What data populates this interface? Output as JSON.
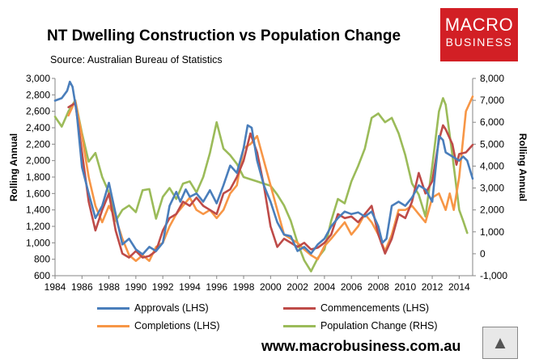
{
  "logo": {
    "line1": "MACRO",
    "line2": "BUSINESS"
  },
  "footer": {
    "url": "www.macrobusiness.com.au",
    "wolf_icon": "wolf-head-icon"
  },
  "colors": {
    "approvals": "#4a7ebb",
    "commencements": "#be4b48",
    "completions": "#f79646",
    "population": "#9bbb59"
  },
  "chart_data": {
    "type": "line",
    "title": "NT Dwelling Construction vs Population Change",
    "subtitle": "Source: Australian Bureau of Statistics",
    "xlabel": "",
    "ylabel_left": "Rolling Annual",
    "ylabel_right": "Rolling Annual",
    "xlim": [
      1984,
      2015
    ],
    "ylim_left": [
      600,
      3000
    ],
    "ylim_right": [
      -1000,
      8000
    ],
    "x_ticks": [
      "1984",
      "1986",
      "1988",
      "1990",
      "1992",
      "1994",
      "1996",
      "1998",
      "2000",
      "2002",
      "2004",
      "2006",
      "2008",
      "2010",
      "2012",
      "2014"
    ],
    "y_ticks_left": [
      "600",
      "800",
      "1,000",
      "1,200",
      "1,400",
      "1,600",
      "1,800",
      "2,000",
      "2,200",
      "2,400",
      "2,600",
      "2,800",
      "3,000"
    ],
    "y_ticks_right": [
      "-1,000",
      "0",
      "1,000",
      "2,000",
      "3,000",
      "4,000",
      "5,000",
      "6,000",
      "7,000",
      "8,000"
    ],
    "legend": [
      "Approvals (LHS)",
      "Commencements (LHS)",
      "Completions (LHS)",
      "Population Change (RHS)"
    ],
    "series": [
      {
        "name": "Approvals (LHS)",
        "axis": "left",
        "points": [
          [
            1984.0,
            2730
          ],
          [
            1984.5,
            2760
          ],
          [
            1984.9,
            2850
          ],
          [
            1985.1,
            2960
          ],
          [
            1985.3,
            2900
          ],
          [
            1985.6,
            2600
          ],
          [
            1986.0,
            1920
          ],
          [
            1986.5,
            1600
          ],
          [
            1987.0,
            1300
          ],
          [
            1987.5,
            1450
          ],
          [
            1988.0,
            1730
          ],
          [
            1988.3,
            1500
          ],
          [
            1988.7,
            1200
          ],
          [
            1989.0,
            980
          ],
          [
            1989.5,
            1050
          ],
          [
            1990.0,
            920
          ],
          [
            1990.5,
            860
          ],
          [
            1991.0,
            950
          ],
          [
            1991.5,
            900
          ],
          [
            1992.0,
            1000
          ],
          [
            1992.5,
            1450
          ],
          [
            1993.0,
            1620
          ],
          [
            1993.3,
            1500
          ],
          [
            1993.7,
            1650
          ],
          [
            1994.0,
            1560
          ],
          [
            1994.5,
            1600
          ],
          [
            1995.0,
            1500
          ],
          [
            1995.5,
            1640
          ],
          [
            1996.0,
            1480
          ],
          [
            1996.5,
            1700
          ],
          [
            1997.0,
            1940
          ],
          [
            1997.5,
            1850
          ],
          [
            1998.0,
            2150
          ],
          [
            1998.3,
            2430
          ],
          [
            1998.6,
            2400
          ],
          [
            1999.0,
            2000
          ],
          [
            1999.5,
            1700
          ],
          [
            2000.0,
            1500
          ],
          [
            2000.5,
            1250
          ],
          [
            2001.0,
            1100
          ],
          [
            2001.5,
            1080
          ],
          [
            2002.0,
            900
          ],
          [
            2002.5,
            950
          ],
          [
            2003.0,
            870
          ],
          [
            2003.5,
            980
          ],
          [
            2004.0,
            1050
          ],
          [
            2004.5,
            1200
          ],
          [
            2005.0,
            1300
          ],
          [
            2005.5,
            1380
          ],
          [
            2006.0,
            1350
          ],
          [
            2006.5,
            1370
          ],
          [
            2007.0,
            1320
          ],
          [
            2007.5,
            1380
          ],
          [
            2008.0,
            1200
          ],
          [
            2008.3,
            1000
          ],
          [
            2008.6,
            1050
          ],
          [
            2009.0,
            1450
          ],
          [
            2009.5,
            1500
          ],
          [
            2010.0,
            1450
          ],
          [
            2010.5,
            1550
          ],
          [
            2011.0,
            1700
          ],
          [
            2011.5,
            1650
          ],
          [
            2012.0,
            1500
          ],
          [
            2012.5,
            2300
          ],
          [
            2012.8,
            2250
          ],
          [
            2013.0,
            2100
          ],
          [
            2013.5,
            2050
          ],
          [
            2014.0,
            2000
          ],
          [
            2014.3,
            2050
          ],
          [
            2014.6,
            2000
          ],
          [
            2015.0,
            1780
          ]
        ]
      },
      {
        "name": "Commencements (LHS)",
        "axis": "left",
        "points": [
          [
            1985.0,
            2650
          ],
          [
            1985.5,
            2700
          ],
          [
            1986.0,
            2100
          ],
          [
            1986.5,
            1500
          ],
          [
            1987.0,
            1150
          ],
          [
            1987.5,
            1400
          ],
          [
            1988.0,
            1600
          ],
          [
            1988.5,
            1150
          ],
          [
            1989.0,
            870
          ],
          [
            1989.5,
            820
          ],
          [
            1990.0,
            900
          ],
          [
            1990.5,
            820
          ],
          [
            1991.0,
            840
          ],
          [
            1991.5,
            900
          ],
          [
            1992.0,
            1150
          ],
          [
            1992.5,
            1300
          ],
          [
            1993.0,
            1350
          ],
          [
            1993.5,
            1500
          ],
          [
            1994.0,
            1450
          ],
          [
            1994.5,
            1550
          ],
          [
            1995.0,
            1450
          ],
          [
            1995.5,
            1400
          ],
          [
            1996.0,
            1350
          ],
          [
            1996.5,
            1600
          ],
          [
            1997.0,
            1650
          ],
          [
            1997.5,
            1800
          ],
          [
            1998.0,
            2000
          ],
          [
            1998.5,
            2330
          ],
          [
            1999.0,
            2100
          ],
          [
            1999.5,
            1700
          ],
          [
            2000.0,
            1200
          ],
          [
            2000.5,
            950
          ],
          [
            2001.0,
            1050
          ],
          [
            2001.5,
            1000
          ],
          [
            2002.0,
            950
          ],
          [
            2002.5,
            1000
          ],
          [
            2003.0,
            920
          ],
          [
            2003.5,
            940
          ],
          [
            2004.0,
            1000
          ],
          [
            2004.5,
            1100
          ],
          [
            2005.0,
            1350
          ],
          [
            2005.5,
            1300
          ],
          [
            2006.0,
            1320
          ],
          [
            2006.5,
            1250
          ],
          [
            2007.0,
            1350
          ],
          [
            2007.5,
            1450
          ],
          [
            2008.0,
            1100
          ],
          [
            2008.5,
            870
          ],
          [
            2009.0,
            1050
          ],
          [
            2009.5,
            1350
          ],
          [
            2010.0,
            1300
          ],
          [
            2010.5,
            1500
          ],
          [
            2011.0,
            1850
          ],
          [
            2011.5,
            1600
          ],
          [
            2012.0,
            1750
          ],
          [
            2012.5,
            2250
          ],
          [
            2012.8,
            2430
          ],
          [
            2013.0,
            2380
          ],
          [
            2013.5,
            2200
          ],
          [
            2013.8,
            1950
          ],
          [
            2014.0,
            2080
          ],
          [
            2014.5,
            2100
          ],
          [
            2015.0,
            2190
          ]
        ]
      },
      {
        "name": "Completions (LHS)",
        "axis": "left",
        "points": [
          [
            1985.0,
            2550
          ],
          [
            1985.5,
            2730
          ],
          [
            1986.0,
            2300
          ],
          [
            1986.5,
            1800
          ],
          [
            1987.0,
            1450
          ],
          [
            1987.5,
            1250
          ],
          [
            1988.0,
            1450
          ],
          [
            1988.5,
            1300
          ],
          [
            1989.0,
            1050
          ],
          [
            1989.5,
            850
          ],
          [
            1990.0,
            780
          ],
          [
            1990.5,
            850
          ],
          [
            1991.0,
            780
          ],
          [
            1991.5,
            950
          ],
          [
            1992.0,
            1000
          ],
          [
            1992.5,
            1200
          ],
          [
            1993.0,
            1350
          ],
          [
            1993.5,
            1450
          ],
          [
            1994.0,
            1550
          ],
          [
            1994.5,
            1400
          ],
          [
            1995.0,
            1350
          ],
          [
            1995.5,
            1400
          ],
          [
            1996.0,
            1300
          ],
          [
            1996.5,
            1400
          ],
          [
            1997.0,
            1600
          ],
          [
            1997.5,
            1700
          ],
          [
            1998.0,
            2150
          ],
          [
            1998.5,
            2200
          ],
          [
            1999.0,
            2300
          ],
          [
            1999.5,
            2000
          ],
          [
            2000.0,
            1700
          ],
          [
            2000.5,
            1400
          ],
          [
            2001.0,
            1100
          ],
          [
            2001.5,
            1050
          ],
          [
            2002.0,
            1000
          ],
          [
            2002.5,
            920
          ],
          [
            2003.0,
            850
          ],
          [
            2003.5,
            800
          ],
          [
            2004.0,
            960
          ],
          [
            2004.5,
            1050
          ],
          [
            2005.0,
            1150
          ],
          [
            2005.5,
            1250
          ],
          [
            2006.0,
            1100
          ],
          [
            2006.5,
            1200
          ],
          [
            2007.0,
            1350
          ],
          [
            2007.5,
            1250
          ],
          [
            2008.0,
            1100
          ],
          [
            2008.5,
            900
          ],
          [
            2009.0,
            1100
          ],
          [
            2009.5,
            1400
          ],
          [
            2010.0,
            1400
          ],
          [
            2010.5,
            1450
          ],
          [
            2011.0,
            1350
          ],
          [
            2011.5,
            1250
          ],
          [
            2012.0,
            1550
          ],
          [
            2012.5,
            1600
          ],
          [
            2013.0,
            1400
          ],
          [
            2013.3,
            1600
          ],
          [
            2013.6,
            1400
          ],
          [
            2014.0,
            1800
          ],
          [
            2014.5,
            2600
          ],
          [
            2015.0,
            2780
          ]
        ]
      },
      {
        "name": "Population Change (RHS)",
        "axis": "right",
        "points": [
          [
            1984.0,
            6250
          ],
          [
            1984.5,
            5800
          ],
          [
            1985.0,
            6500
          ],
          [
            1985.5,
            7000
          ],
          [
            1986.0,
            5500
          ],
          [
            1986.5,
            4200
          ],
          [
            1987.0,
            4600
          ],
          [
            1987.5,
            3500
          ],
          [
            1988.0,
            2800
          ],
          [
            1988.5,
            1500
          ],
          [
            1989.0,
            2000
          ],
          [
            1989.5,
            2200
          ],
          [
            1990.0,
            1900
          ],
          [
            1990.5,
            2900
          ],
          [
            1991.0,
            2950
          ],
          [
            1991.5,
            1600
          ],
          [
            1992.0,
            2600
          ],
          [
            1992.5,
            3000
          ],
          [
            1993.0,
            2500
          ],
          [
            1993.5,
            3200
          ],
          [
            1994.0,
            3300
          ],
          [
            1994.5,
            2800
          ],
          [
            1995.0,
            3500
          ],
          [
            1995.5,
            4600
          ],
          [
            1996.0,
            6000
          ],
          [
            1996.5,
            4800
          ],
          [
            1997.0,
            4500
          ],
          [
            1997.5,
            4100
          ],
          [
            1998.0,
            3500
          ],
          [
            1998.5,
            3400
          ],
          [
            1999.0,
            3300
          ],
          [
            1999.5,
            3200
          ],
          [
            2000.0,
            3100
          ],
          [
            2000.5,
            2700
          ],
          [
            2001.0,
            2200
          ],
          [
            2001.5,
            1500
          ],
          [
            2002.0,
            500
          ],
          [
            2002.5,
            -300
          ],
          [
            2003.0,
            -800
          ],
          [
            2003.5,
            -200
          ],
          [
            2004.0,
            200
          ],
          [
            2004.5,
            1500
          ],
          [
            2005.0,
            2500
          ],
          [
            2005.5,
            2300
          ],
          [
            2006.0,
            3300
          ],
          [
            2006.5,
            4000
          ],
          [
            2007.0,
            4800
          ],
          [
            2007.5,
            6200
          ],
          [
            2008.0,
            6400
          ],
          [
            2008.5,
            6000
          ],
          [
            2009.0,
            6200
          ],
          [
            2009.5,
            5500
          ],
          [
            2010.0,
            4500
          ],
          [
            2010.5,
            3200
          ],
          [
            2011.0,
            2700
          ],
          [
            2011.5,
            1700
          ],
          [
            2012.0,
            4000
          ],
          [
            2012.5,
            6500
          ],
          [
            2012.8,
            7100
          ],
          [
            2013.0,
            6800
          ],
          [
            2013.5,
            4500
          ],
          [
            2014.0,
            2000
          ],
          [
            2014.3,
            1500
          ],
          [
            2014.6,
            950
          ]
        ]
      }
    ]
  }
}
